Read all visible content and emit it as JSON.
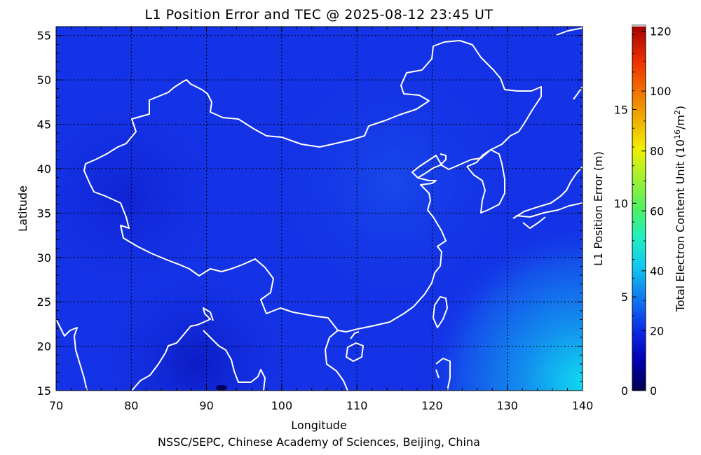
{
  "title": "L1 Position Error and TEC @ 2025-08-12 23:45 UT",
  "footer": "NSSC/SEPC, Chinese Academy of Sciences, Beijing, China",
  "map": {
    "xlabel": "Longitude",
    "ylabel": "Latitude",
    "lon_range": [
      70,
      140
    ],
    "lat_range": [
      15,
      56
    ],
    "lon_ticks": [
      "70",
      "80",
      "90",
      "100",
      "110",
      "120",
      "130",
      "140"
    ],
    "lat_ticks": [
      "15",
      "20",
      "25",
      "30",
      "35",
      "40",
      "45",
      "50",
      "55"
    ],
    "grid": "dotted",
    "background_color": "#1432e6",
    "coastline_color": "#ffffff"
  },
  "colorbar": {
    "left_label": "L1 Position Error (m)",
    "right_label_main": "Total Electron Content Unit (10",
    "right_label_sup1": "16",
    "right_label_mid": "/m",
    "right_label_sup2": "2",
    "right_label_end": ")",
    "left_ticks": [
      "0",
      "5",
      "10",
      "15"
    ],
    "right_ticks": [
      "0",
      "20",
      "40",
      "60",
      "80",
      "100",
      "120"
    ],
    "tec_range": [
      0,
      122
    ],
    "error_range": [
      0,
      19.5
    ],
    "colors": [
      "#000060",
      "#0000a0",
      "#0a1ee6",
      "#0f50f0",
      "#1090f0",
      "#10d0f0",
      "#20f0c0",
      "#40f080",
      "#80f040",
      "#c0f020",
      "#f0f000",
      "#f0c000",
      "#f08000",
      "#f04000",
      "#e01000",
      "#a00000"
    ]
  }
}
